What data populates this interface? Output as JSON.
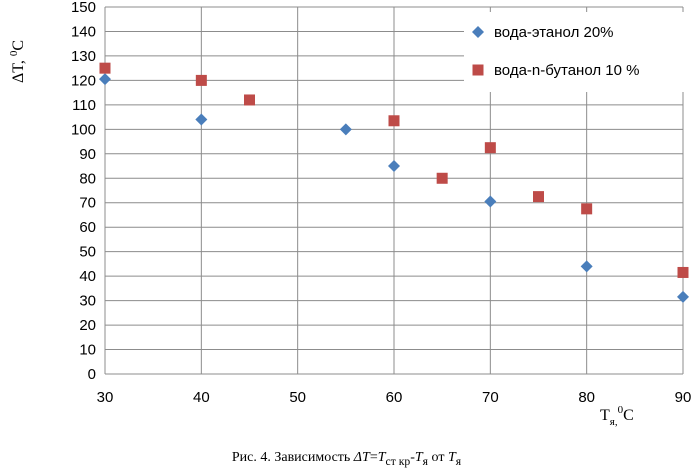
{
  "chart_data": {
    "type": "scatter",
    "title": "",
    "xlabel_main": "T",
    "xlabel_sub": "я,",
    "xlabel_sup": "0",
    "xlabel_unit": "C",
    "ylabel_main": "ΔT, ",
    "ylabel_sup": "0",
    "ylabel_unit": "C",
    "xlim": [
      30,
      90
    ],
    "ylim": [
      0,
      150
    ],
    "xticks": [
      30,
      40,
      50,
      60,
      70,
      80,
      90
    ],
    "yticks": [
      0,
      10,
      20,
      30,
      40,
      50,
      60,
      70,
      80,
      90,
      100,
      110,
      120,
      130,
      140,
      150
    ],
    "grid": true,
    "legend_position": "top-right",
    "series": [
      {
        "name": "вода-этанол 20%",
        "marker": "diamond",
        "color": "#4a7ebb",
        "x": [
          30,
          40,
          55,
          60,
          70,
          80,
          90
        ],
        "y": [
          120.5,
          104,
          100,
          85,
          70.5,
          44,
          31.5
        ]
      },
      {
        "name": "вода-n-бутанол 10 %",
        "marker": "square",
        "color": "#be4b48",
        "x": [
          30,
          40,
          45,
          60,
          65,
          70,
          75,
          80,
          90
        ],
        "y": [
          125,
          120,
          112,
          103.5,
          80,
          92.5,
          72.5,
          67.5,
          41.5
        ]
      }
    ]
  },
  "caption": {
    "prefix": "Рис. 4. Зависимость  ",
    "dT": "ΔT",
    "eq": "=",
    "T1": "T",
    "sub1": "ст кр",
    "dash": "-",
    "T2": "T",
    "sub2": "я",
    "mid": " от ",
    "T3": "T",
    "sub3": "я"
  }
}
